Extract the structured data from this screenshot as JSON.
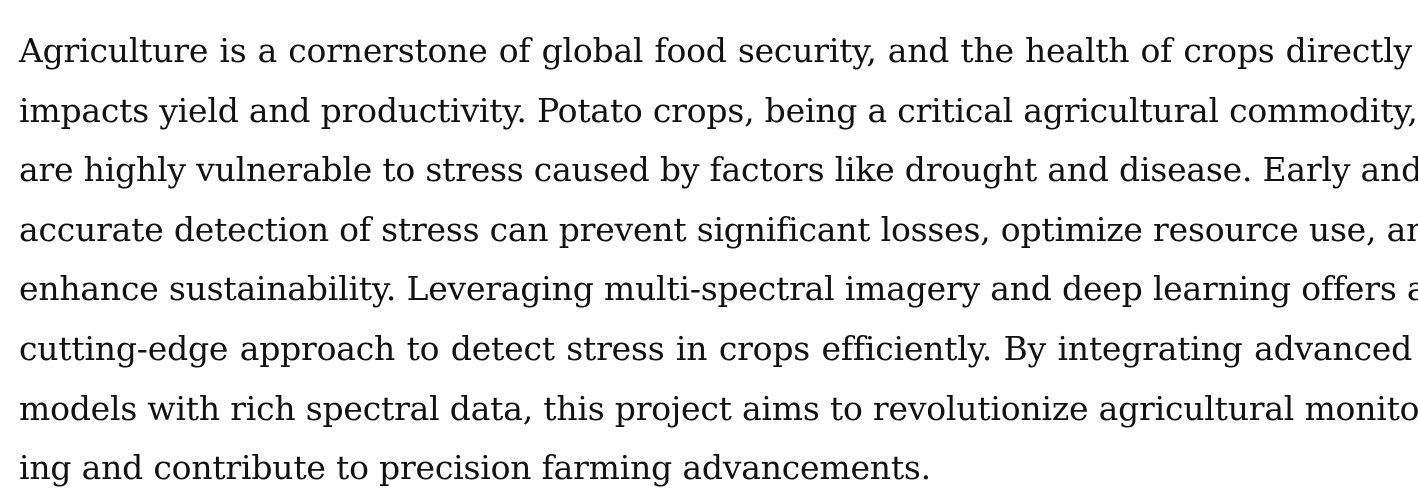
{
  "paragraph": {
    "lines": [
      "Agriculture is a cornerstone of global food security, and the health of crops directly",
      "impacts yield and productivity. Potato crops, being a critical agricultural commodity,",
      "are highly vulnerable to stress caused by factors like drought and disease. Early and",
      "accurate detection of stress can prevent significant losses, optimize resource use, and",
      "enhance sustainability. Leveraging multi-spectral imagery and deep learning offers a",
      "cutting-edge approach to detect stress in crops efficiently. By integrating advanced",
      "models with rich spectral data, this project aims to revolutionize agricultural monitor-",
      "ing and contribute to precision farming advancements."
    ]
  }
}
